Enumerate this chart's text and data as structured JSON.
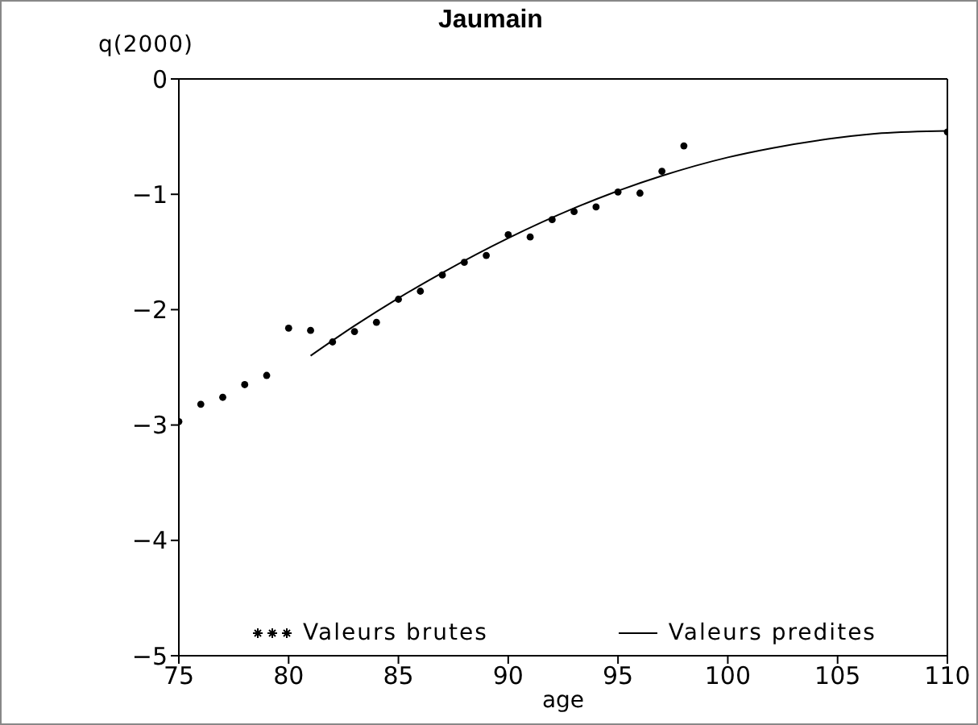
{
  "chart_data": {
    "type": "scatter",
    "title": "Jaumain",
    "xlabel": "age",
    "ylabel": "q(2000)",
    "xlim": [
      75,
      110
    ],
    "xticks": [
      75,
      80,
      85,
      90,
      95,
      100,
      105,
      110
    ],
    "ylim": [
      -5,
      0
    ],
    "yticks": [
      -5,
      -4,
      -3,
      -2,
      -1,
      0
    ],
    "grid": false,
    "legend": "bottom",
    "series": [
      {
        "name": "Valeurs brutes",
        "marker": "circle",
        "color": "#000000",
        "x": [
          75,
          76,
          77,
          78,
          79,
          80,
          81,
          82,
          83,
          84,
          85,
          86,
          87,
          88,
          89,
          90,
          91,
          92,
          93,
          94,
          95,
          96,
          97,
          98,
          110
        ],
        "values": [
          -2.97,
          -2.82,
          -2.76,
          -2.65,
          -2.57,
          -2.16,
          -2.18,
          -2.28,
          -2.19,
          -2.11,
          -1.91,
          -1.84,
          -1.7,
          -1.59,
          -1.53,
          -1.35,
          -1.37,
          -1.22,
          -1.15,
          -1.11,
          -0.98,
          -0.99,
          -0.8,
          -0.58,
          -0.46
        ]
      },
      {
        "name": "Valeurs predites",
        "type": "line",
        "color": "#000000",
        "line_style": "solid",
        "x": [
          81,
          83,
          85,
          87,
          90,
          93,
          95,
          97,
          100,
          102,
          105,
          107,
          110
        ],
        "values": [
          -2.4,
          -2.14,
          -1.9,
          -1.68,
          -1.38,
          -1.12,
          -0.97,
          -0.84,
          -0.68,
          -0.6,
          -0.51,
          -0.47,
          -0.45
        ]
      }
    ]
  }
}
